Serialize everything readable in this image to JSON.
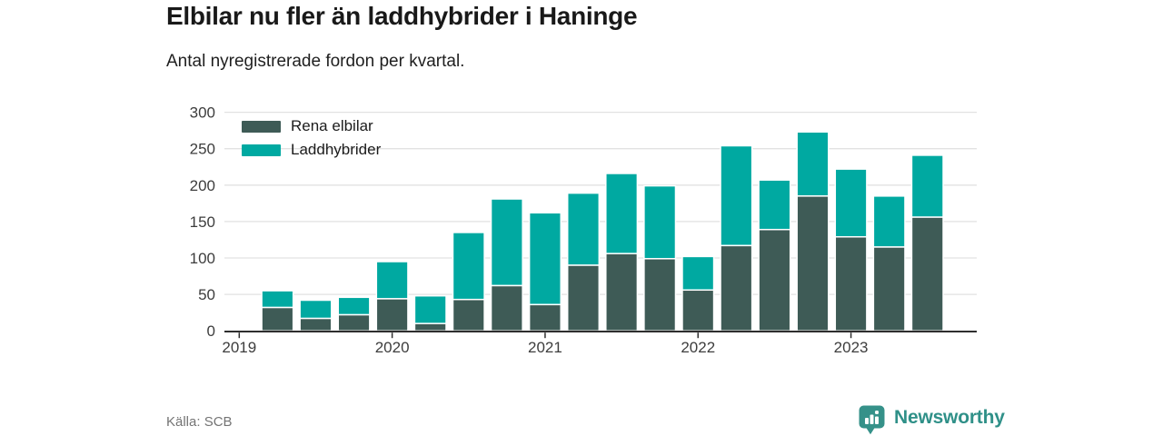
{
  "header": {
    "title": "Elbilar nu fler än laddhybrider i Haninge",
    "subtitle": "Antal nyregistrerade fordon per kvartal."
  },
  "chart_data": {
    "type": "bar",
    "stacked": true,
    "title": "Elbilar nu fler än laddhybrider i Haninge",
    "subtitle": "Antal nyregistrerade fordon per kvartal.",
    "categories": [
      "2019 Q2",
      "2019 Q3",
      "2019 Q4",
      "2020 Q1",
      "2020 Q2",
      "2020 Q3",
      "2020 Q4",
      "2021 Q1",
      "2021 Q2",
      "2021 Q3",
      "2021 Q4",
      "2022 Q1",
      "2022 Q2",
      "2022 Q3",
      "2022 Q4",
      "2023 Q1",
      "2023 Q2",
      "2023 Q3"
    ],
    "series": [
      {
        "name": "Rena elbilar",
        "color": "#3e5b56",
        "values": [
          32,
          17,
          22,
          44,
          10,
          43,
          62,
          36,
          90,
          106,
          99,
          56,
          117,
          139,
          185,
          129,
          115,
          156
        ]
      },
      {
        "name": "Laddhybrider",
        "color": "#00a9a1",
        "values": [
          23,
          25,
          24,
          51,
          38,
          92,
          119,
          126,
          99,
          110,
          100,
          46,
          137,
          68,
          88,
          93,
          70,
          85
        ]
      }
    ],
    "ylim": [
      0,
      300
    ],
    "yticks": [
      0,
      50,
      100,
      150,
      200,
      250,
      300
    ],
    "xticks": [
      "2019",
      "2020",
      "2021",
      "2022",
      "2023"
    ],
    "grid": "horizontal",
    "grid_color": "#e2e2e2",
    "axis_color": "#2e2e2e",
    "tick_label_color": "#3d3d3d",
    "legend_position": "top-left-inside"
  },
  "footer": {
    "source": "Källa: SCB",
    "brand": "Newsworthy",
    "brand_color": "#2f9088"
  }
}
